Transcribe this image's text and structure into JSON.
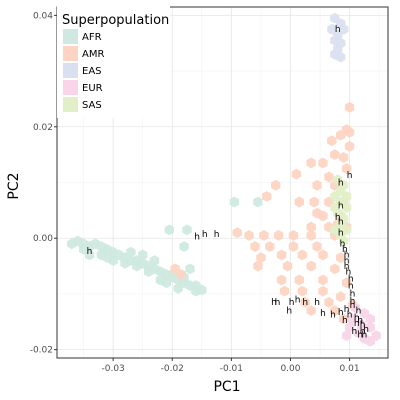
{
  "chart_data": {
    "type": "scatter",
    "title": "",
    "xlabel": "PC1",
    "ylabel": "PC2",
    "xlim": [
      -0.0395,
      0.0165
    ],
    "ylim": [
      -0.0215,
      0.0415
    ],
    "xticks": [
      -0.03,
      -0.02,
      -0.01,
      0.0,
      0.01
    ],
    "xtick_labels": [
      "-0.03",
      "-0.02",
      "-0.01",
      "0.00",
      "0.01"
    ],
    "yticks": [
      -0.02,
      0.0,
      0.02,
      0.04
    ],
    "ytick_labels": [
      "-0.02",
      "0.00",
      "0.02",
      "0.04"
    ],
    "grid": true,
    "legend": {
      "title": "Superpopulation",
      "placement": "top-left"
    },
    "point_label": "h",
    "series": [
      {
        "name": "AFR",
        "color": "#cfe9e0",
        "points": [
          [
            -0.037,
            -0.001
          ],
          [
            -0.036,
            -0.0005
          ],
          [
            -0.035,
            -0.001
          ],
          [
            -0.034,
            -0.0015
          ],
          [
            -0.033,
            -0.001
          ],
          [
            -0.032,
            -0.0015
          ],
          [
            -0.031,
            -0.002
          ],
          [
            -0.03,
            -0.0025
          ],
          [
            -0.029,
            -0.003
          ],
          [
            -0.028,
            -0.0035
          ],
          [
            -0.027,
            -0.004
          ],
          [
            -0.026,
            -0.004
          ],
          [
            -0.025,
            -0.0045
          ],
          [
            -0.024,
            -0.005
          ],
          [
            -0.023,
            -0.0055
          ],
          [
            -0.022,
            -0.006
          ],
          [
            -0.021,
            -0.0065
          ],
          [
            -0.02,
            -0.007
          ],
          [
            -0.019,
            -0.0075
          ],
          [
            -0.018,
            -0.008
          ],
          [
            -0.017,
            -0.0085
          ],
          [
            -0.016,
            -0.0095
          ],
          [
            -0.015,
            -0.0093
          ],
          [
            -0.034,
            -0.003
          ],
          [
            -0.032,
            -0.003
          ],
          [
            -0.03,
            -0.004
          ],
          [
            -0.028,
            -0.0045
          ],
          [
            -0.026,
            -0.005
          ],
          [
            -0.024,
            -0.006
          ],
          [
            -0.022,
            -0.0075
          ],
          [
            -0.02,
            -0.0065
          ],
          [
            -0.018,
            -0.007
          ],
          [
            -0.016,
            -0.0085
          ],
          [
            -0.035,
            -0.002
          ],
          [
            -0.031,
            -0.0035
          ],
          [
            -0.027,
            -0.0025
          ],
          [
            -0.025,
            -0.003
          ],
          [
            -0.023,
            -0.004
          ],
          [
            -0.021,
            -0.008
          ],
          [
            -0.019,
            -0.009
          ],
          [
            -0.017,
            -0.0055
          ],
          [
            -0.0205,
            0.0015
          ],
          [
            -0.0175,
            0.0015
          ],
          [
            -0.018,
            -0.0015
          ],
          [
            -0.0095,
            0.0065
          ],
          [
            -0.0055,
            0.0065
          ]
        ]
      },
      {
        "name": "AMR",
        "color": "#fdd4c2",
        "points": [
          [
            0.01,
            0.0235
          ],
          [
            0.0095,
            0.0195
          ],
          [
            0.0085,
            0.0185
          ],
          [
            0.01,
            0.019
          ],
          [
            0.007,
            0.0175
          ],
          [
            0.01,
            0.0165
          ],
          [
            0.009,
            0.0145
          ],
          [
            0.0075,
            0.015
          ],
          [
            0.0035,
            0.0135
          ],
          [
            0.0055,
            0.0135
          ],
          [
            0.001,
            0.0115
          ],
          [
            0.0065,
            0.011
          ],
          [
            0.0095,
            0.0125
          ],
          [
            0.0045,
            0.0095
          ],
          [
            0.0075,
            0.0095
          ],
          [
            -0.0025,
            0.0095
          ],
          [
            -0.004,
            0.0075
          ],
          [
            0.0015,
            0.0065
          ],
          [
            0.004,
            0.0065
          ],
          [
            0.0065,
            0.0065
          ],
          [
            0.009,
            0.0065
          ],
          [
            0.0055,
            0.004
          ],
          [
            0.0085,
            0.004
          ],
          [
            0.0035,
            0.002
          ],
          [
            0.0065,
            0.002
          ],
          [
            0.0095,
            0.002
          ],
          [
            -0.009,
            0.001
          ],
          [
            -0.007,
            0.0005
          ],
          [
            -0.0045,
            0.0005
          ],
          [
            -0.002,
            0.0005
          ],
          [
            0.0005,
            0.0005
          ],
          [
            0.0035,
            0.0005
          ],
          [
            0.0075,
            0.0005
          ],
          [
            -0.006,
            -0.0015
          ],
          [
            -0.0035,
            -0.0015
          ],
          [
            0.0005,
            -0.0015
          ],
          [
            0.0045,
            -0.0015
          ],
          [
            -0.005,
            -0.0035
          ],
          [
            -0.0015,
            -0.003
          ],
          [
            0.002,
            -0.003
          ],
          [
            0.0055,
            -0.003
          ],
          [
            0.0085,
            -0.0035
          ],
          [
            -0.0055,
            -0.005
          ],
          [
            -0.0005,
            -0.005
          ],
          [
            0.0035,
            -0.005
          ],
          [
            0.0075,
            -0.0055
          ],
          [
            -0.0015,
            -0.0075
          ],
          [
            0.0015,
            -0.0075
          ],
          [
            0.0055,
            -0.0075
          ],
          [
            0.0095,
            -0.008
          ],
          [
            -0.001,
            -0.0095
          ],
          [
            0.002,
            -0.0095
          ],
          [
            0.0055,
            -0.0095
          ],
          [
            0.0085,
            -0.0105
          ],
          [
            0.0025,
            -0.0115
          ],
          [
            0.0065,
            -0.0115
          ],
          [
            0.0035,
            -0.013
          ],
          [
            0.0075,
            -0.013
          ],
          [
            0.0105,
            -0.012
          ],
          [
            0.009,
            -0.0145
          ],
          [
            -0.0195,
            -0.0055
          ],
          [
            -0.0185,
            -0.0065
          ],
          [
            0.0045,
            0.0045
          ],
          [
            0.008,
            0.0025
          ]
        ]
      },
      {
        "name": "EAS",
        "color": "#dbe0f0",
        "points": [
          [
            0.0075,
            0.0395
          ],
          [
            0.0085,
            0.0385
          ],
          [
            0.007,
            0.0375
          ],
          [
            0.008,
            0.0365
          ],
          [
            0.009,
            0.0375
          ],
          [
            0.0075,
            0.0355
          ],
          [
            0.0085,
            0.035
          ],
          [
            0.008,
            0.034
          ],
          [
            0.0075,
            0.033
          ],
          [
            0.0085,
            0.0325
          ]
        ]
      },
      {
        "name": "EUR",
        "color": "#f8d5e8",
        "points": [
          [
            0.011,
            -0.0125
          ],
          [
            0.0125,
            -0.0135
          ],
          [
            0.0135,
            -0.0145
          ],
          [
            0.0105,
            -0.0145
          ],
          [
            0.012,
            -0.0155
          ],
          [
            0.0135,
            -0.016
          ],
          [
            0.0145,
            -0.0175
          ],
          [
            0.0115,
            -0.017
          ],
          [
            0.0125,
            -0.018
          ],
          [
            0.0135,
            -0.0185
          ],
          [
            0.01,
            -0.016
          ],
          [
            0.0095,
            -0.0175
          ]
        ]
      },
      {
        "name": "SAS",
        "color": "#e2efc7",
        "points": [
          [
            0.008,
            0.0105
          ],
          [
            0.009,
            0.0095
          ],
          [
            0.0085,
            0.0085
          ],
          [
            0.0075,
            0.0075
          ],
          [
            0.0095,
            0.0075
          ],
          [
            0.0085,
            0.0065
          ],
          [
            0.0075,
            0.0055
          ],
          [
            0.0095,
            0.0055
          ],
          [
            0.008,
            0.0045
          ],
          [
            0.009,
            0.0035
          ],
          [
            0.0085,
            0.0025
          ],
          [
            0.0075,
            0.0015
          ],
          [
            0.0095,
            0.0015
          ],
          [
            0.0085,
            0.0005
          ],
          [
            0.009,
            -0.0005
          ]
        ]
      }
    ],
    "h_labels": [
      [
        0.008,
        0.037
      ],
      [
        -0.034,
        -0.0028
      ],
      [
        -0.0145,
        0.0002
      ],
      [
        -0.0158,
        -0.0002
      ],
      [
        -0.0125,
        0.0002
      ],
      [
        0.01,
        0.0108
      ],
      [
        0.0085,
        0.0095
      ],
      [
        0.0085,
        0.0053
      ],
      [
        0.008,
        0.0033
      ],
      [
        0.0085,
        0.0025
      ],
      [
        0.0085,
        0.0005
      ],
      [
        0.0088,
        -0.0015
      ],
      [
        0.0092,
        -0.0025
      ],
      [
        0.0095,
        -0.0035
      ],
      [
        0.0095,
        -0.0045
      ],
      [
        0.0095,
        -0.0055
      ],
      [
        0.0098,
        -0.0065
      ],
      [
        0.0102,
        -0.0078
      ],
      [
        0.0102,
        -0.009
      ],
      [
        0.0105,
        -0.0105
      ],
      [
        0.0105,
        -0.0125
      ],
      [
        0.0095,
        -0.0132
      ],
      [
        0.0085,
        -0.0138
      ],
      [
        0.01,
        -0.0142
      ],
      [
        0.0112,
        -0.0148
      ],
      [
        0.0118,
        -0.0152
      ],
      [
        0.0122,
        -0.016
      ],
      [
        0.0112,
        -0.0158
      ],
      [
        0.0128,
        -0.0168
      ],
      [
        0.0122,
        -0.0172
      ],
      [
        0.0125,
        -0.0178
      ],
      [
        -0.0028,
        -0.012
      ],
      [
        -0.0022,
        -0.012
      ],
      [
        0.0012,
        -0.0115
      ],
      [
        0.0002,
        -0.012
      ],
      [
        -0.0002,
        -0.0135
      ],
      [
        0.0025,
        -0.012
      ],
      [
        0.0045,
        -0.012
      ],
      [
        0.0055,
        -0.014
      ],
      [
        0.0072,
        -0.0142
      ],
      [
        0.0092,
        -0.0152
      ],
      [
        0.0115,
        -0.0135
      ],
      [
        0.0105,
        -0.0118
      ],
      [
        0.0108,
        -0.0172
      ],
      [
        0.0118,
        -0.0178
      ]
    ]
  }
}
